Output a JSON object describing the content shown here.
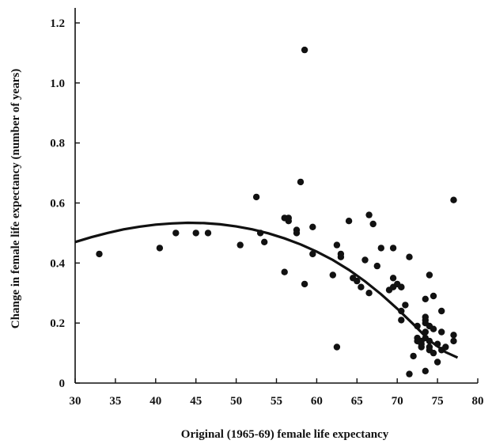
{
  "chart_data": {
    "type": "scatter",
    "title": "",
    "xlabel": "Original (1965-69) female life expectancy",
    "ylabel": "Change in female life expectancy (number of years)",
    "xlim": [
      30,
      80
    ],
    "ylim": [
      0,
      1.25
    ],
    "xticks": [
      "30",
      "35",
      "40",
      "45",
      "50",
      "55",
      "60",
      "65",
      "70",
      "75",
      "80"
    ],
    "yticks": [
      "0",
      "0.2",
      "0.4",
      "0.6",
      "0.8",
      "1.0",
      "1.2"
    ],
    "grid": false,
    "points": [
      [
        33,
        0.43
      ],
      [
        40.5,
        0.45
      ],
      [
        42.5,
        0.5
      ],
      [
        45,
        0.5
      ],
      [
        46.5,
        0.5
      ],
      [
        50.5,
        0.46
      ],
      [
        52.5,
        0.62
      ],
      [
        53,
        0.5
      ],
      [
        53.5,
        0.47
      ],
      [
        56,
        0.37
      ],
      [
        56,
        0.55
      ],
      [
        56.5,
        0.54
      ],
      [
        56.5,
        0.55
      ],
      [
        57.5,
        0.5
      ],
      [
        57.5,
        0.51
      ],
      [
        58,
        0.67
      ],
      [
        58.5,
        0.33
      ],
      [
        58.5,
        1.11
      ],
      [
        59.5,
        0.52
      ],
      [
        59.5,
        0.43
      ],
      [
        62,
        0.36
      ],
      [
        62.5,
        0.12
      ],
      [
        62.5,
        0.46
      ],
      [
        63,
        0.43
      ],
      [
        63,
        0.42
      ],
      [
        64,
        0.54
      ],
      [
        64.5,
        0.35
      ],
      [
        65,
        0.34
      ],
      [
        65.5,
        0.32
      ],
      [
        66,
        0.41
      ],
      [
        66.5,
        0.3
      ],
      [
        66.5,
        0.56
      ],
      [
        67,
        0.53
      ],
      [
        67.5,
        0.39
      ],
      [
        68,
        0.45
      ],
      [
        69,
        0.31
      ],
      [
        69.5,
        0.45
      ],
      [
        69.5,
        0.35
      ],
      [
        69.5,
        0.32
      ],
      [
        70,
        0.33
      ],
      [
        70.5,
        0.32
      ],
      [
        70.5,
        0.32
      ],
      [
        70.5,
        0.24
      ],
      [
        70.5,
        0.21
      ],
      [
        71,
        0.26
      ],
      [
        71.5,
        0.42
      ],
      [
        71.5,
        0.03
      ],
      [
        72,
        0.09
      ],
      [
        72.5,
        0.19
      ],
      [
        72.5,
        0.15
      ],
      [
        72.5,
        0.14
      ],
      [
        73,
        0.14
      ],
      [
        73,
        0.12
      ],
      [
        73,
        0.13
      ],
      [
        73.5,
        0.21
      ],
      [
        73.5,
        0.17
      ],
      [
        73.5,
        0.15
      ],
      [
        73.5,
        0.22
      ],
      [
        73.5,
        0.28
      ],
      [
        73.5,
        0.2
      ],
      [
        73.5,
        0.04
      ],
      [
        74,
        0.11
      ],
      [
        74,
        0.14
      ],
      [
        74,
        0.36
      ],
      [
        74,
        0.12
      ],
      [
        74,
        0.19
      ],
      [
        74.5,
        0.29
      ],
      [
        74.5,
        0.18
      ],
      [
        74.5,
        0.1
      ],
      [
        75,
        0.07
      ],
      [
        75,
        0.13
      ],
      [
        75.5,
        0.24
      ],
      [
        75.5,
        0.17
      ],
      [
        75.5,
        0.11
      ],
      [
        76,
        0.12
      ],
      [
        77,
        0.16
      ],
      [
        77,
        0.14
      ],
      [
        77,
        0.61
      ]
    ],
    "fit_curve": {
      "x": [
        30,
        32,
        34,
        36,
        38,
        40,
        42,
        44,
        46,
        48,
        50,
        52,
        54,
        56,
        58,
        60,
        62,
        64,
        66,
        68,
        70,
        72,
        74,
        76,
        77.5
      ],
      "y": [
        0.47,
        0.486,
        0.5,
        0.512,
        0.521,
        0.528,
        0.532,
        0.534,
        0.533,
        0.529,
        0.522,
        0.512,
        0.499,
        0.482,
        0.462,
        0.438,
        0.41,
        0.377,
        0.339,
        0.296,
        0.248,
        0.196,
        0.142,
        0.103,
        0.085
      ]
    }
  }
}
